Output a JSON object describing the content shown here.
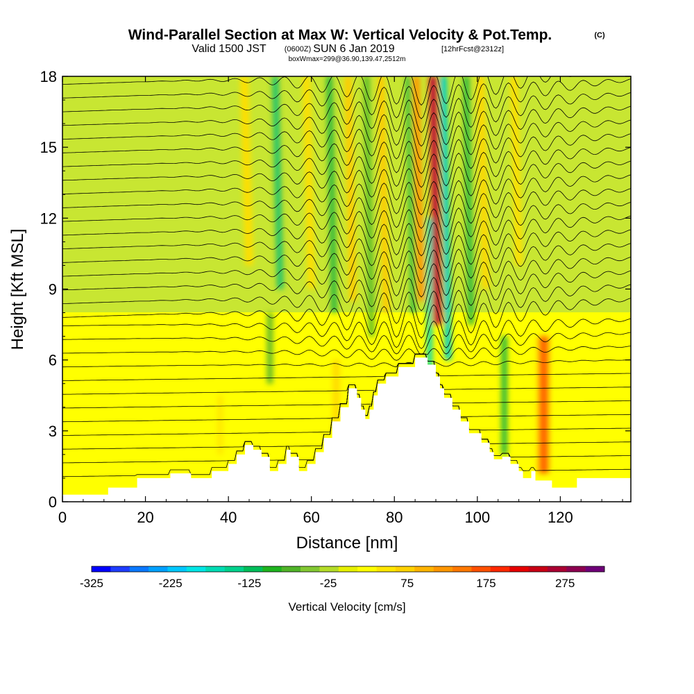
{
  "header": {
    "title": "Wind-Parallel Section at Max W: Vertical Velocity & Pot.Temp.",
    "copyright": "(C)",
    "valid_prefix": "Valid 1500 JST",
    "utc_time": "(0600Z)",
    "valid_date": "SUN 6 Jan 2019",
    "forecast": "[12hrFcst@2312z]",
    "box_info": "boxWmax=299@36.90,139.47,2512m"
  },
  "chart_data": {
    "type": "heatmap",
    "xlabel": "Distance [nm]",
    "ylabel": "Height [Kft MSL]",
    "xlim": [
      0,
      137
    ],
    "ylim": [
      0,
      18
    ],
    "x_ticks": [
      0,
      20,
      40,
      60,
      80,
      100,
      120
    ],
    "y_ticks": [
      0,
      3,
      6,
      9,
      12,
      15,
      18
    ],
    "y_tick_labels": [
      "0",
      "3",
      "6",
      "9",
      "12",
      "15",
      "18"
    ],
    "x_tick_labels": [
      "0",
      "20",
      "40",
      "60",
      "80",
      "100",
      "120"
    ],
    "terrain": [
      [
        0,
        0.3
      ],
      [
        11,
        0.3
      ],
      [
        11,
        0.6
      ],
      [
        18,
        0.6
      ],
      [
        18,
        1.0
      ],
      [
        26,
        1.0
      ],
      [
        26,
        1.2
      ],
      [
        31,
        1.2
      ],
      [
        31,
        1.0
      ],
      [
        36,
        1.0
      ],
      [
        36,
        1.3
      ],
      [
        40,
        1.3
      ],
      [
        40,
        1.6
      ],
      [
        42,
        1.6
      ],
      [
        42,
        2.0
      ],
      [
        44,
        2.0
      ],
      [
        44,
        2.4
      ],
      [
        46,
        2.4
      ],
      [
        46,
        2.2
      ],
      [
        48,
        2.2
      ],
      [
        48,
        1.9
      ],
      [
        50,
        1.9
      ],
      [
        50,
        1.3
      ],
      [
        52,
        1.3
      ],
      [
        52,
        1.6
      ],
      [
        54,
        1.6
      ],
      [
        54,
        2.2
      ],
      [
        55,
        2.2
      ],
      [
        55,
        1.9
      ],
      [
        57,
        1.9
      ],
      [
        57,
        1.3
      ],
      [
        59,
        1.3
      ],
      [
        59,
        1.6
      ],
      [
        61,
        1.6
      ],
      [
        61,
        2.1
      ],
      [
        63,
        2.1
      ],
      [
        63,
        2.7
      ],
      [
        65,
        2.7
      ],
      [
        65,
        3.4
      ],
      [
        67,
        3.4
      ],
      [
        67,
        4.0
      ],
      [
        69,
        4.0
      ],
      [
        69,
        4.8
      ],
      [
        71,
        4.8
      ],
      [
        71,
        4.4
      ],
      [
        72,
        4.4
      ],
      [
        72,
        3.9
      ],
      [
        73,
        3.9
      ],
      [
        73,
        3.5
      ],
      [
        74,
        3.5
      ],
      [
        74,
        3.9
      ],
      [
        75,
        3.9
      ],
      [
        75,
        4.5
      ],
      [
        76,
        4.5
      ],
      [
        76,
        5.0
      ],
      [
        78,
        5.0
      ],
      [
        78,
        5.3
      ],
      [
        81,
        5.3
      ],
      [
        81,
        5.7
      ],
      [
        85,
        5.7
      ],
      [
        85,
        6.1
      ],
      [
        88,
        6.1
      ],
      [
        88,
        5.8
      ],
      [
        90,
        5.8
      ],
      [
        90,
        5.3
      ],
      [
        91,
        5.3
      ],
      [
        91,
        4.8
      ],
      [
        92,
        4.8
      ],
      [
        92,
        4.4
      ],
      [
        94,
        4.4
      ],
      [
        94,
        3.9
      ],
      [
        96,
        3.9
      ],
      [
        96,
        3.4
      ],
      [
        98,
        3.4
      ],
      [
        98,
        2.9
      ],
      [
        101,
        2.9
      ],
      [
        101,
        2.5
      ],
      [
        103,
        2.5
      ],
      [
        103,
        2.1
      ],
      [
        104,
        2.1
      ],
      [
        104,
        1.8
      ],
      [
        106,
        1.8
      ],
      [
        106,
        1.9
      ],
      [
        108,
        1.9
      ],
      [
        108,
        1.6
      ],
      [
        110,
        1.6
      ],
      [
        110,
        1.3
      ],
      [
        111,
        1.3
      ],
      [
        111,
        1.0
      ],
      [
        113,
        1.0
      ],
      [
        113,
        1.3
      ],
      [
        114,
        1.3
      ],
      [
        114,
        0.9
      ],
      [
        118,
        0.9
      ],
      [
        118,
        0.6
      ],
      [
        124,
        0.6
      ],
      [
        124,
        1.0
      ],
      [
        137,
        1.0
      ]
    ],
    "vertical_velocity_features": [
      {
        "kind": "updraft",
        "x": 90.5,
        "y0": 7.5,
        "y1": 18,
        "w": 2.2,
        "value": 299
      },
      {
        "kind": "updraft",
        "x": 86.5,
        "y0": 8.5,
        "y1": 18,
        "w": 1.6,
        "value": 150
      },
      {
        "kind": "updraft",
        "x": 78.0,
        "y0": 8.0,
        "y1": 18,
        "w": 1.8,
        "value": 90
      },
      {
        "kind": "updraft",
        "x": 70.0,
        "y0": 8.5,
        "y1": 18,
        "w": 1.8,
        "value": 90
      },
      {
        "kind": "updraft",
        "x": 60.0,
        "y0": 9.0,
        "y1": 18,
        "w": 1.8,
        "value": 70
      },
      {
        "kind": "updraft",
        "x": 45.0,
        "y0": 10.0,
        "y1": 18,
        "w": 2.0,
        "value": 70
      },
      {
        "kind": "updraft",
        "x": 102.0,
        "y0": 9.0,
        "y1": 18,
        "w": 1.8,
        "value": 80
      },
      {
        "kind": "updraft",
        "x": 110.0,
        "y0": 10.0,
        "y1": 18,
        "w": 1.8,
        "value": 70
      },
      {
        "kind": "updraft",
        "x": 116.0,
        "y0": 1.2,
        "y1": 7.0,
        "w": 3.0,
        "value": 175
      },
      {
        "kind": "updraft",
        "x": 66.0,
        "y0": 3.0,
        "y1": 6.0,
        "w": 2.0,
        "value": 75
      },
      {
        "kind": "updraft",
        "x": 38.0,
        "y0": 2.0,
        "y1": 4.5,
        "w": 2.0,
        "value": 60
      },
      {
        "kind": "downdraft",
        "x": 93.0,
        "y0": 6.0,
        "y1": 18,
        "w": 1.6,
        "value": -225
      },
      {
        "kind": "downdraft",
        "x": 88.5,
        "y0": 5.5,
        "y1": 12.0,
        "w": 1.3,
        "value": -200
      },
      {
        "kind": "downdraft",
        "x": 84.5,
        "y0": 8.0,
        "y1": 18,
        "w": 1.2,
        "value": -125
      },
      {
        "kind": "downdraft",
        "x": 74.5,
        "y0": 7.0,
        "y1": 18,
        "w": 1.4,
        "value": -100
      },
      {
        "kind": "downdraft",
        "x": 65.5,
        "y0": 8.0,
        "y1": 18,
        "w": 1.5,
        "value": -110
      },
      {
        "kind": "downdraft",
        "x": 52.5,
        "y0": 9.0,
        "y1": 18,
        "w": 1.7,
        "value": -140
      },
      {
        "kind": "downdraft",
        "x": 98.5,
        "y0": 7.5,
        "y1": 18,
        "w": 1.5,
        "value": -110
      },
      {
        "kind": "downdraft",
        "x": 106.5,
        "y0": 2.0,
        "y1": 7.0,
        "w": 1.5,
        "value": -120
      },
      {
        "kind": "downdraft",
        "x": 50.0,
        "y0": 5.0,
        "y1": 8.0,
        "w": 1.5,
        "value": -80
      }
    ],
    "colorbar": {
      "title": "Vertical Velocity [cm/s]",
      "min": -325,
      "max": 325,
      "step": 25,
      "tick_labels": [
        "-325",
        "-225",
        "-125",
        "-25",
        "75",
        "175",
        "275"
      ],
      "colors": [
        "#0000ff",
        "#1e3cff",
        "#0a78ff",
        "#00a0ff",
        "#00c8ff",
        "#00e6e6",
        "#00dcb4",
        "#00d28c",
        "#00be5a",
        "#1eb41e",
        "#50b428",
        "#82c832",
        "#b4dc28",
        "#e6f000",
        "#ffff00",
        "#ffe600",
        "#ffd200",
        "#ffb400",
        "#ff9600",
        "#ff7800",
        "#ff5000",
        "#ff2800",
        "#e60000",
        "#c80014",
        "#aa0032",
        "#8c0050",
        "#6e0078"
      ]
    }
  }
}
